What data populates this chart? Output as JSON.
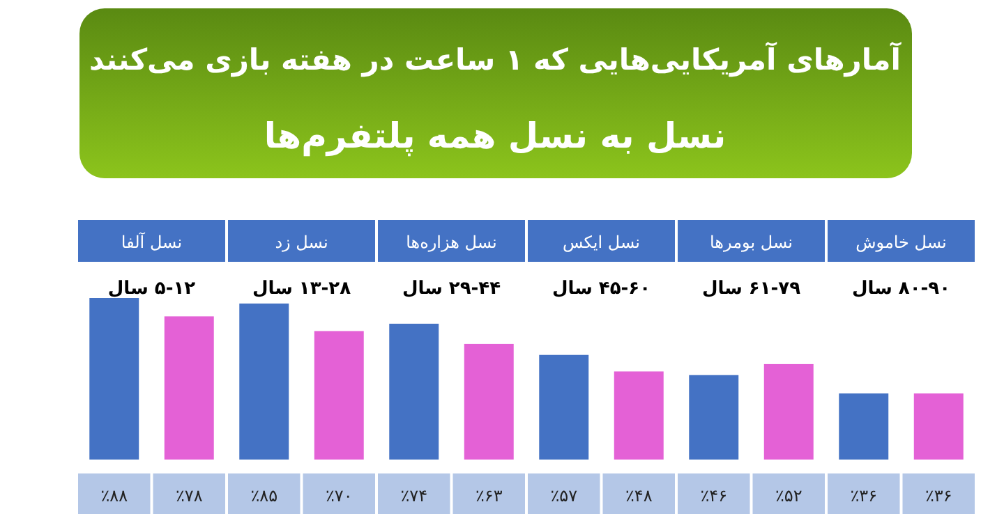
{
  "chart_data": {
    "type": "bar",
    "title": "آمارهای آمریکایی‌هایی که ۱ ساعت در هفته بازی می‌کنند",
    "subtitle": "نسل به نسل همه پلتفرم‌ها",
    "categories": [
      "نسل آلفا\n۵-۱۲ سال",
      "نسل زد\n۱۳-۲۸ سال",
      "نسل هزاره‌ها\n۲۹-۴۴ سال",
      "نسل ایکس\n۴۵-۶۰ سال",
      "نسل بومرها\n۶۱-۷۹ سال",
      "نسل خاموش\n۸۰-۹۰ سال"
    ],
    "series": [
      {
        "color": "#4472c4",
        "values": [
          88,
          85,
          74,
          57,
          46,
          36
        ],
        "value_labels": [
          "٪۸۸",
          "٪۸۵",
          "٪۷۴",
          "٪۵۷",
          "٪۴۶",
          "٪۳۶"
        ]
      },
      {
        "color": "#e461d6",
        "values": [
          78,
          70,
          63,
          48,
          52,
          36
        ],
        "value_labels": [
          "٪۷۸",
          "٪۷۰",
          "٪۶۳",
          "٪۴۸",
          "٪۵۲",
          "٪۳۶"
        ]
      }
    ]
  }
}
